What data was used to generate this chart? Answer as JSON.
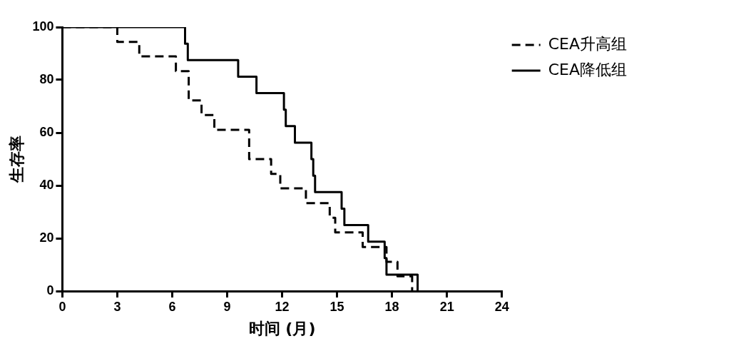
{
  "chart_data": {
    "type": "step",
    "xlabel": "时间 (月)",
    "ylabel": "生存率",
    "xlim": [
      0,
      24
    ],
    "xticks": [
      0,
      3,
      6,
      9,
      12,
      15,
      18,
      21,
      24
    ],
    "ylim": [
      0,
      100
    ],
    "yticks": [
      0,
      20,
      40,
      60,
      80,
      100
    ],
    "grid": false,
    "legend": "top right",
    "series": [
      {
        "name": "CEA升高组",
        "color": "#000000",
        "line_style": "dashed",
        "x": [
          0,
          3,
          4.2,
          6.2,
          6.9,
          7.6,
          8.3,
          10.2,
          11.4,
          11.9,
          13.3,
          14.6,
          14.9,
          16.4,
          17.7,
          18.3,
          19.1
        ],
        "values": [
          100,
          94.4,
          88.9,
          83.3,
          72.2,
          66.7,
          61.1,
          50,
          44.4,
          38.9,
          33.3,
          27.8,
          22.2,
          16.7,
          11.1,
          5.6,
          0
        ]
      },
      {
        "name": "CEA降低组",
        "color": "#000000",
        "line_style": "solid",
        "x": [
          0,
          6.7,
          6.85,
          9.6,
          10.6,
          12.1,
          12.2,
          12.7,
          13.6,
          13.7,
          13.8,
          15.25,
          15.4,
          16.7,
          17.6,
          17.7,
          19.4
        ],
        "values": [
          100,
          93.75,
          87.5,
          81.25,
          75,
          68.75,
          62.5,
          56.25,
          50,
          43.75,
          37.5,
          31.25,
          25,
          18.75,
          12.5,
          6.25,
          0
        ]
      }
    ]
  }
}
